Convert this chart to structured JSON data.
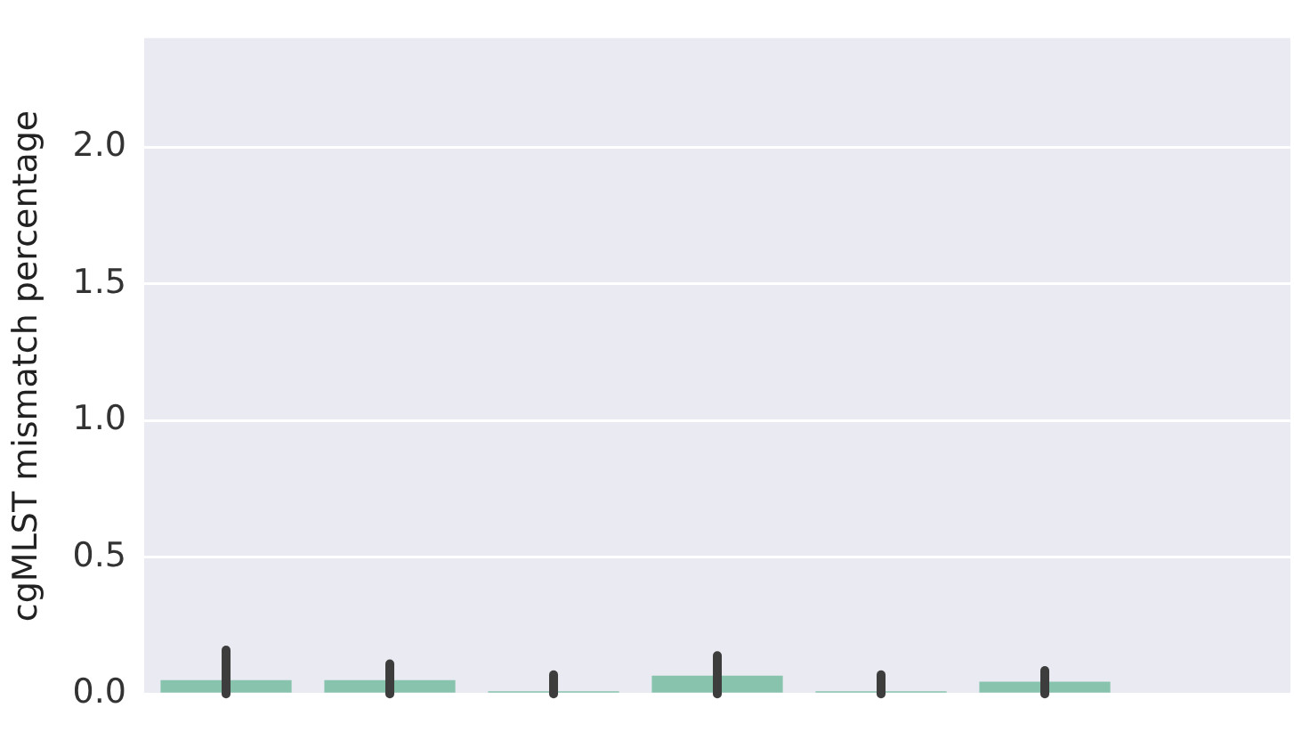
{
  "chart_data": {
    "type": "bar",
    "ylabel": "cgMLST mismatch percentage",
    "categories": [
      null,
      null,
      null,
      null,
      null,
      null,
      null
    ],
    "values": [
      0.05,
      0.05,
      0.01,
      0.067,
      0.01,
      0.045,
      null
    ],
    "errors": [
      [
        0,
        0.16
      ],
      [
        0,
        0.11
      ],
      [
        0,
        0.07
      ],
      [
        0,
        0.14
      ],
      [
        0,
        0.07
      ],
      [
        0,
        0.085
      ],
      null
    ],
    "color": "#88c4ad",
    "ylim": [
      0,
      2.4
    ],
    "yticks": [
      {
        "value": 0,
        "label": "0.0"
      },
      0.5,
      {
        "value": 1,
        "label": "1.0"
      },
      1.5,
      {
        "value": 2,
        "label": "2.0"
      }
    ],
    "grid": "y",
    "tick_labels": "y"
  }
}
